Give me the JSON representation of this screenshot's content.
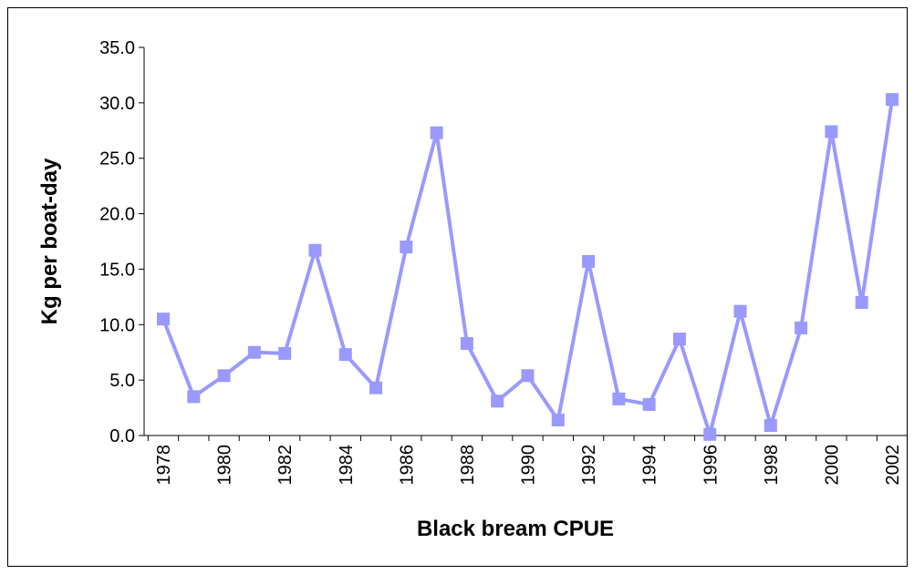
{
  "chart_data": {
    "type": "line",
    "title": "Black bream CPUE",
    "y_label": "Kg per boat-day",
    "categories": [
      "1978",
      null,
      "1980",
      null,
      "1982",
      null,
      "1984",
      null,
      "1986",
      null,
      "1988",
      null,
      "1990",
      null,
      "1992",
      null,
      "1994",
      null,
      "1996",
      null,
      "1998",
      null,
      "2000",
      null,
      "2002"
    ],
    "series": [
      {
        "name": null,
        "color": "#9999ff",
        "values": [
          10.5,
          3.5,
          5.4,
          7.5,
          7.4,
          16.7,
          7.3,
          4.3,
          17.0,
          27.3,
          8.3,
          3.1,
          5.4,
          1.4,
          15.7,
          3.3,
          2.8,
          8.7,
          0.1,
          11.2,
          0.9,
          9.7,
          27.4,
          12.0,
          30.3
        ]
      }
    ],
    "ylim": [
      0,
      35
    ],
    "yticks": [
      {
        "value": 0,
        "label": "0.0"
      },
      {
        "value": 5,
        "label": "5.0"
      },
      {
        "value": 10,
        "label": "10.0"
      },
      {
        "value": 15,
        "label": "15.0"
      },
      {
        "value": 20,
        "label": "20.0"
      },
      {
        "value": 25,
        "label": "25.0"
      },
      {
        "value": 30,
        "label": "30.0"
      },
      {
        "value": 35,
        "label": "35.0"
      }
    ],
    "grid": false
  }
}
